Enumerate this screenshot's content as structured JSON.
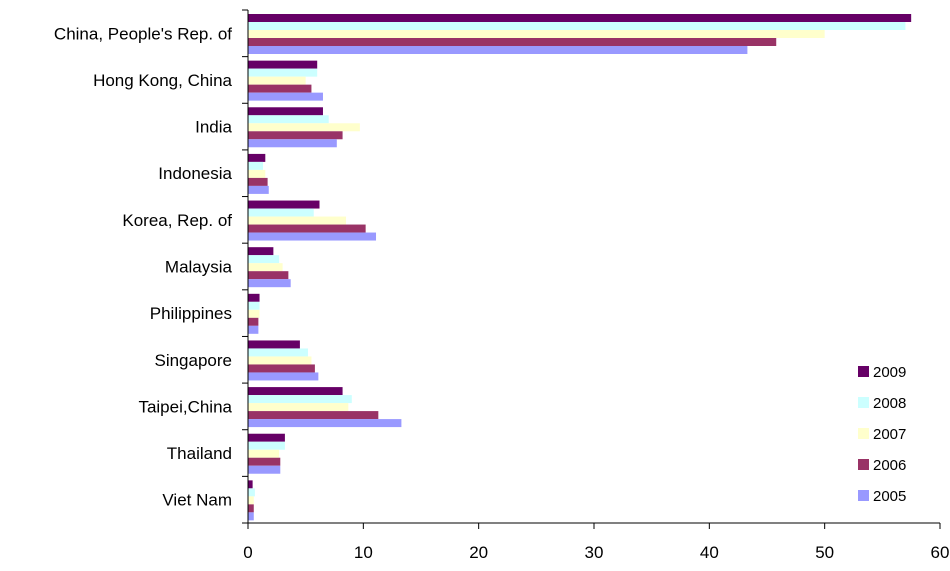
{
  "chart_data": {
    "type": "bar",
    "orientation": "horizontal",
    "categories": [
      "China, People's Rep. of",
      "Hong Kong, China",
      "India",
      "Indonesia",
      "Korea, Rep. of",
      "Malaysia",
      "Philippines",
      "Singapore",
      "Taipei,China",
      "Thailand",
      "Viet Nam"
    ],
    "series": [
      {
        "name": "2009",
        "color": "#660066",
        "values": [
          57.5,
          6.0,
          6.5,
          1.5,
          6.2,
          2.2,
          1.0,
          4.5,
          8.2,
          3.2,
          0.4
        ]
      },
      {
        "name": "2008",
        "color": "#ccffff",
        "values": [
          57.0,
          6.0,
          7.0,
          1.3,
          5.7,
          2.7,
          1.0,
          5.2,
          9.0,
          3.2,
          0.6
        ]
      },
      {
        "name": "2007",
        "color": "#ffffcc",
        "values": [
          50.0,
          5.0,
          9.7,
          1.5,
          8.5,
          3.0,
          1.0,
          5.5,
          8.7,
          2.7,
          0.5
        ]
      },
      {
        "name": "2006",
        "color": "#993366",
        "values": [
          45.8,
          5.5,
          8.2,
          1.7,
          10.2,
          3.5,
          0.9,
          5.8,
          11.3,
          2.8,
          0.5
        ]
      },
      {
        "name": "2005",
        "color": "#9999ff",
        "values": [
          43.3,
          6.5,
          7.7,
          1.8,
          11.1,
          3.7,
          0.9,
          6.1,
          13.3,
          2.8,
          0.5
        ]
      }
    ],
    "xlim": [
      0,
      60
    ],
    "xticks": [
      "0",
      "10",
      "20",
      "30",
      "40",
      "50",
      "60"
    ],
    "grid": false,
    "legend_position": "bottom-right"
  }
}
